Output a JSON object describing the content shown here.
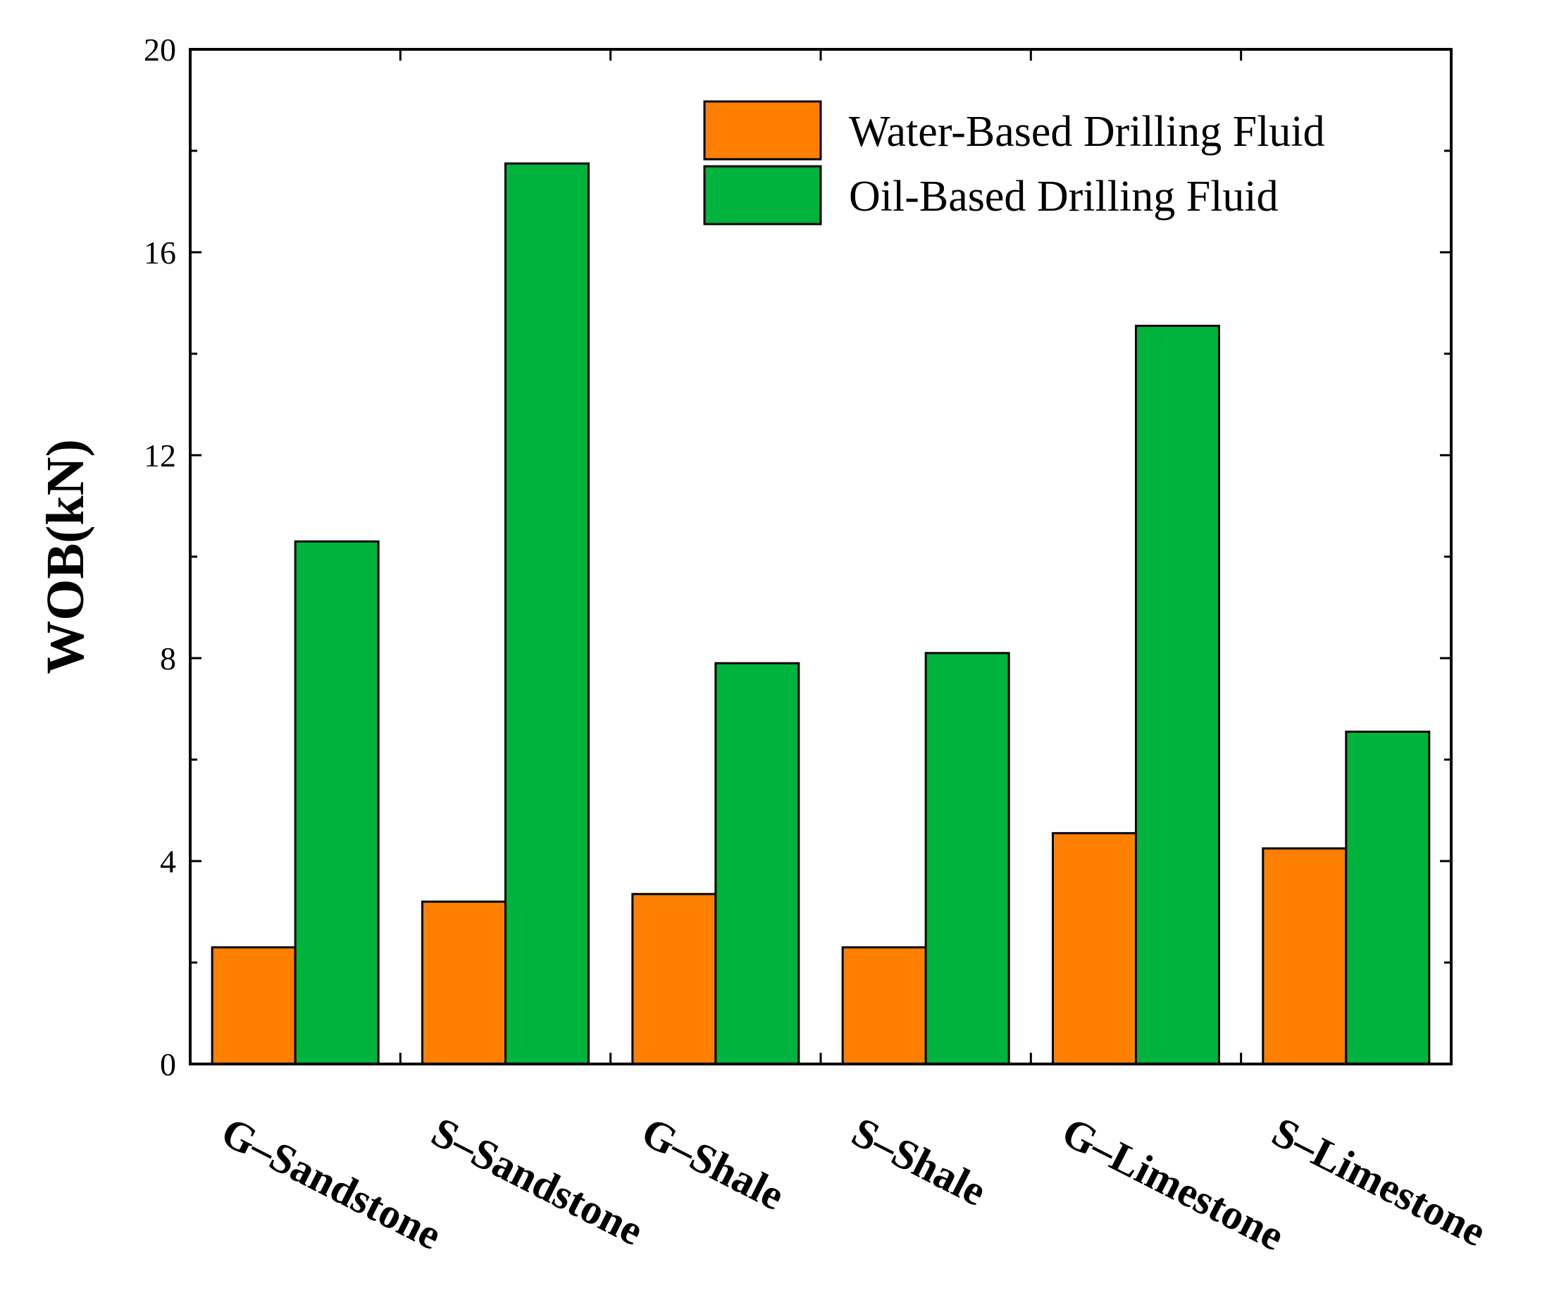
{
  "chart_data": {
    "type": "bar",
    "title": "",
    "xlabel": "",
    "ylabel": "WOB(kN)",
    "ylim": [
      0,
      20
    ],
    "yticks": [
      0,
      4,
      8,
      12,
      16,
      20
    ],
    "categories": [
      "G–Sandstone",
      "S–Sandstone",
      "G–Shale",
      "S–Shale",
      "G–Limestone",
      "S–Limestone"
    ],
    "series": [
      {
        "name": "Water-Based Drilling Fluid",
        "color": "#ff8000",
        "values": [
          2.3,
          3.2,
          3.35,
          2.3,
          4.55,
          4.25
        ]
      },
      {
        "name": "Oil-Based Drilling Fluid",
        "color": "#00b33c",
        "values": [
          10.3,
          17.75,
          7.9,
          8.1,
          14.55,
          6.55
        ]
      }
    ],
    "legend_position": "top-right",
    "grid": false
  }
}
